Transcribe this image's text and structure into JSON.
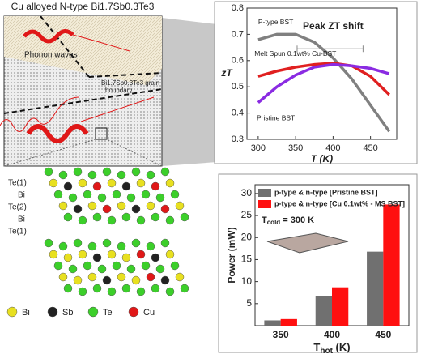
{
  "panel": {
    "title": "Cu alloyed N-type Bi1.7Sb0.3Te3",
    "phonon": "Phonon waves",
    "boundary_1": "Bi1.7Sb0.3Te3 grain",
    "boundary_2": "boundary",
    "layers": [
      "Te(1)",
      "Bi",
      "Te(2)",
      "Bi",
      "Te(1)"
    ],
    "atoms": [
      {
        "name": "Bi",
        "color": "#e8e020"
      },
      {
        "name": "Sb",
        "color": "#222222"
      },
      {
        "name": "Te",
        "color": "#3ccf2a"
      },
      {
        "name": "Cu",
        "color": "#e01818"
      }
    ]
  },
  "chart_data": [
    {
      "type": "line",
      "xlabel": "T (K)",
      "ylabel": "zT",
      "annotation": "Peak ZT shift",
      "x": [
        300,
        325,
        350,
        375,
        400,
        425,
        450,
        475
      ],
      "xlim": [
        285,
        485
      ],
      "xticks": [
        300,
        350,
        400,
        450
      ],
      "ylim": [
        0.3,
        0.8
      ],
      "yticks": [
        0.3,
        0.4,
        0.5,
        0.6,
        0.7,
        0.8
      ],
      "series": [
        {
          "name": "P-type BST",
          "color": "#808080",
          "values": [
            0.68,
            0.7,
            0.7,
            0.67,
            0.61,
            0.53,
            0.43,
            0.33
          ]
        },
        {
          "name": "Melt Spun 0.1wt% Cu-BST",
          "color": "#e02020",
          "values": [
            0.54,
            0.56,
            0.575,
            0.585,
            0.59,
            0.58,
            0.54,
            0.47
          ]
        },
        {
          "name": "Pristine BST",
          "color": "#8a2be2",
          "values": [
            0.44,
            0.5,
            0.545,
            0.575,
            0.585,
            0.58,
            0.57,
            0.55
          ]
        }
      ]
    },
    {
      "type": "bar",
      "ylabel": "Power (mW)",
      "xlabel": {
        "main": "T",
        "sub": "hot",
        "rest": " (K)"
      },
      "annotation": {
        "main": "T",
        "sub": "cold",
        "rest": " = 300 K"
      },
      "categories": [
        "350",
        "400",
        "450"
      ],
      "ylim": [
        0,
        32
      ],
      "yticks": [
        5,
        10,
        15,
        20,
        25,
        30
      ],
      "series": [
        {
          "name": "p-type & n-type [Pristine BST]",
          "color": "#707070",
          "values": [
            1.2,
            6.8,
            16.8
          ]
        },
        {
          "name": "p-type & n-type [Cu 0.1wt% - MS BST]",
          "color": "#ff1010",
          "values": [
            1.5,
            8.7,
            27.5
          ]
        }
      ]
    }
  ]
}
